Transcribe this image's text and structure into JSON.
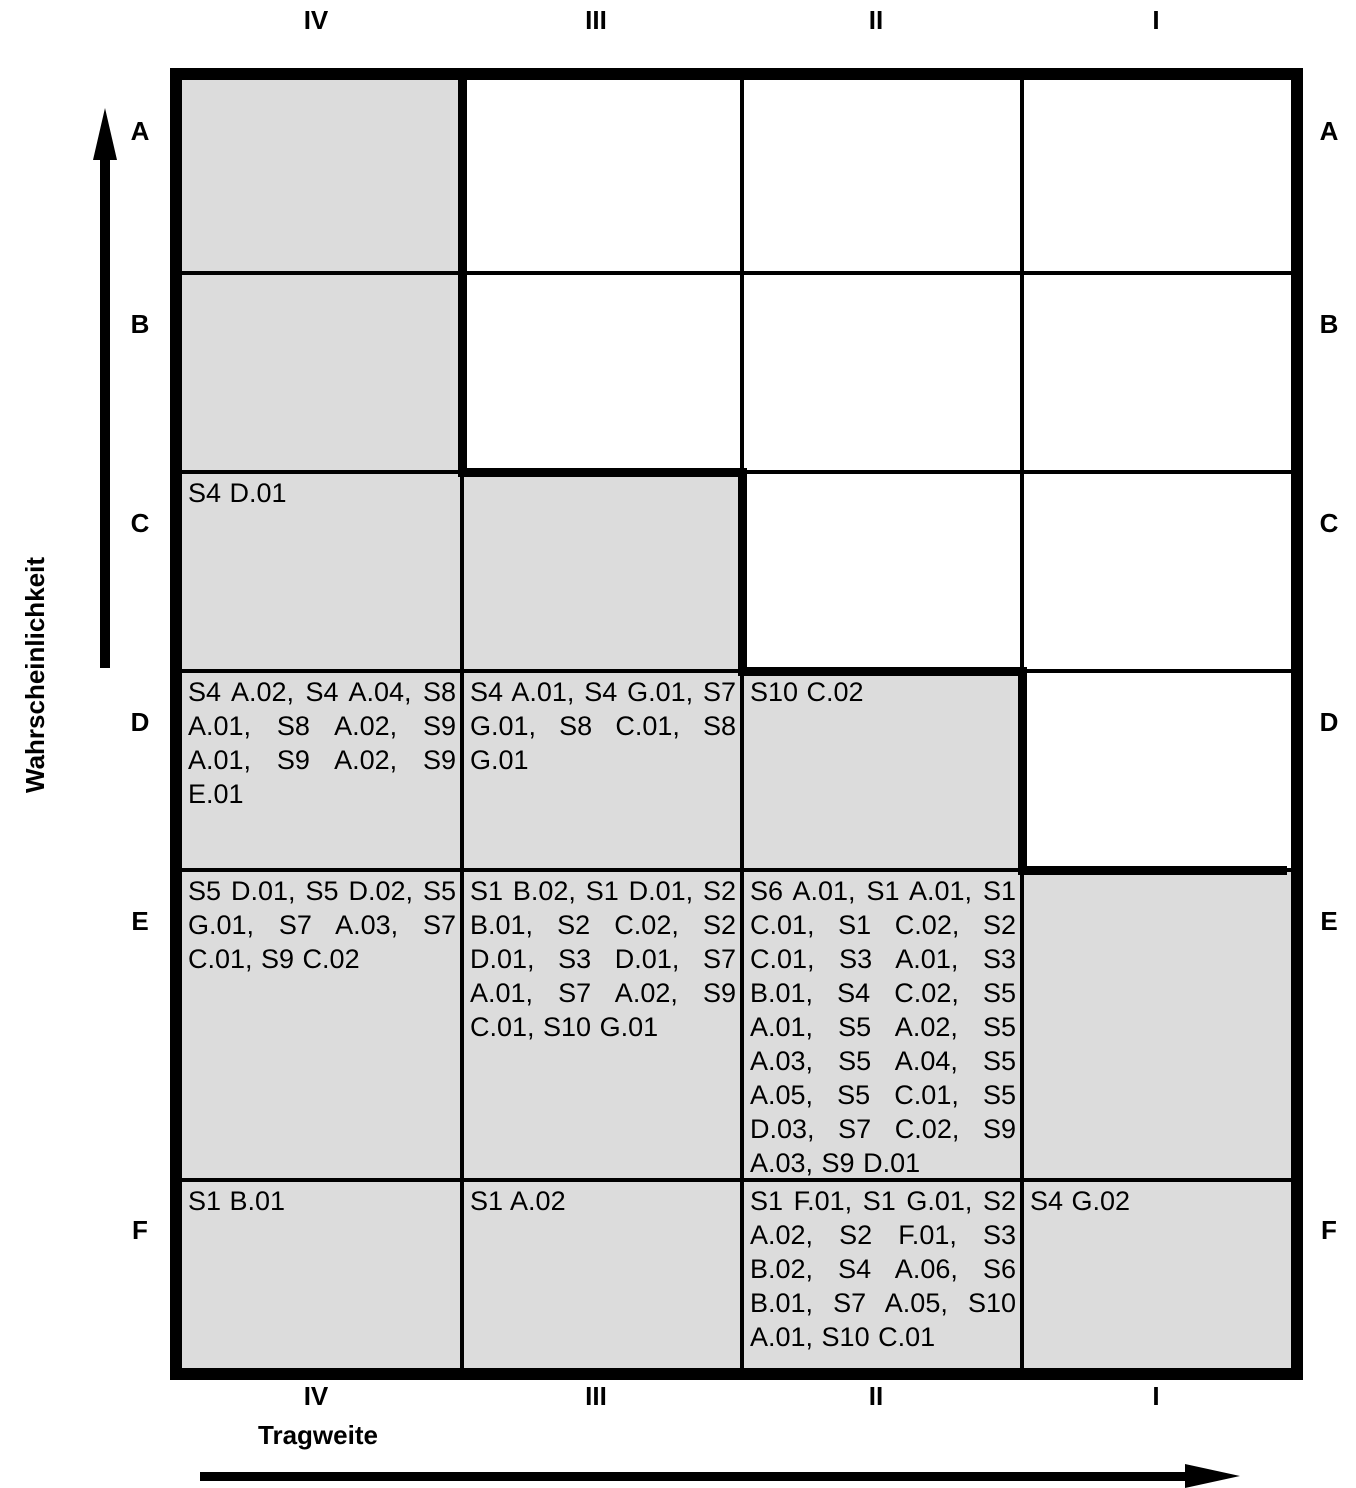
{
  "diagram": {
    "columns": [
      "IV",
      "III",
      "II",
      "I"
    ],
    "rows": [
      "A",
      "B",
      "C",
      "D",
      "E",
      "F"
    ],
    "x_axis_title": "Tragweite",
    "y_axis_title": "Wahrscheinlichkeit",
    "colors": {
      "shaded": "#dcdcdc",
      "unshaded": "#ffffff",
      "lines": "#000000"
    },
    "cells": [
      [
        "",
        "",
        "",
        ""
      ],
      [
        "",
        "",
        "",
        ""
      ],
      [
        "S4 D.01",
        "",
        "",
        ""
      ],
      [
        "S4 A.02, S4 A.04, S8 A.01, S8 A.02, S9 A.01, S9 A.02, S9 E.01",
        "S4 A.01, S4 G.01, S7 G.01, S8 C.01, S8 G.01",
        "S10 C.02",
        ""
      ],
      [
        "S5 D.01, S5 D.02, S5 G.01, S7 A.03, S7 C.01, S9 C.02",
        "S1 B.02, S1 D.01, S2 B.01, S2 C.02, S2 D.01, S3 D.01, S7 A.01, S7 A.02, S9 C.01, S10 G.01",
        "S6 A.01, S1 A.01, S1 C.01, S1 C.02, S2 C.01, S3 A.01, S3 B.01, S4 C.02, S5 A.01, S5 A.02, S5 A.03, S5 A.04, S5 A.05, S5 C.01, S5 D.03, S7 C.02, S9 A.03, S9 D.01",
        ""
      ],
      [
        "S1 B.01",
        "S1 A.02",
        "S1 F.01, S1 G.01, S2 A.02, S2 F.01, S3 B.02, S4 A.06, S6 B.01, S7 A.05, S10 A.01, S10 C.01",
        "S4 G.02"
      ]
    ],
    "shaded": [
      [
        true,
        false,
        false,
        false
      ],
      [
        true,
        false,
        false,
        false
      ],
      [
        true,
        true,
        false,
        false
      ],
      [
        true,
        true,
        true,
        false
      ],
      [
        true,
        true,
        true,
        true
      ],
      [
        true,
        true,
        true,
        true
      ]
    ]
  }
}
